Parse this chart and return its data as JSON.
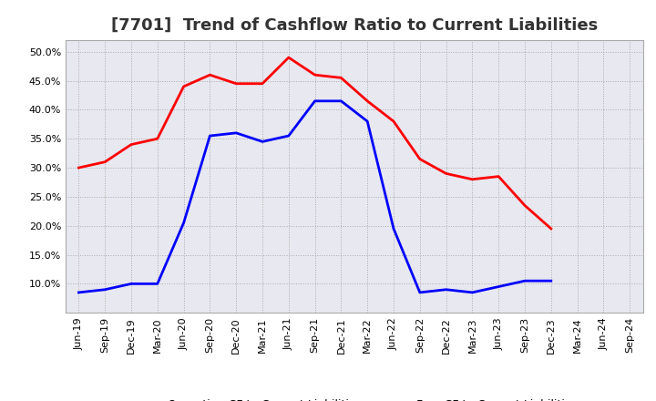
{
  "title": "[7701]  Trend of Cashflow Ratio to Current Liabilities",
  "x_labels": [
    "Jun-19",
    "Sep-19",
    "Dec-19",
    "Mar-20",
    "Jun-20",
    "Sep-20",
    "Dec-20",
    "Mar-21",
    "Jun-21",
    "Sep-21",
    "Dec-21",
    "Mar-22",
    "Jun-22",
    "Sep-22",
    "Dec-22",
    "Mar-23",
    "Jun-23",
    "Sep-23",
    "Dec-23",
    "Mar-24",
    "Jun-24",
    "Sep-24"
  ],
  "operating_cf": [
    0.3,
    0.31,
    0.34,
    0.35,
    0.44,
    0.46,
    0.445,
    0.445,
    0.49,
    0.46,
    0.455,
    0.415,
    0.38,
    0.315,
    0.29,
    0.28,
    0.285,
    0.235,
    0.195,
    null,
    null,
    null
  ],
  "free_cf": [
    0.085,
    0.09,
    0.1,
    0.1,
    0.205,
    0.355,
    0.36,
    0.345,
    0.355,
    0.415,
    0.415,
    0.38,
    0.195,
    0.085,
    0.09,
    0.085,
    0.095,
    0.105,
    0.105,
    null,
    null,
    null
  ],
  "operating_color": "#ff0000",
  "free_color": "#0000ff",
  "ylim": [
    0.05,
    0.52
  ],
  "yticks": [
    0.1,
    0.15,
    0.2,
    0.25,
    0.3,
    0.35,
    0.4,
    0.45,
    0.5
  ],
  "plot_bg_color": "#e8e8f0",
  "figure_bg_color": "#ffffff",
  "grid_color": "#aaaaaa",
  "title_fontsize": 13,
  "tick_fontsize": 8,
  "legend_labels": [
    "Operating CF to Current Liabilities",
    "Free CF to Current Liabilities"
  ]
}
